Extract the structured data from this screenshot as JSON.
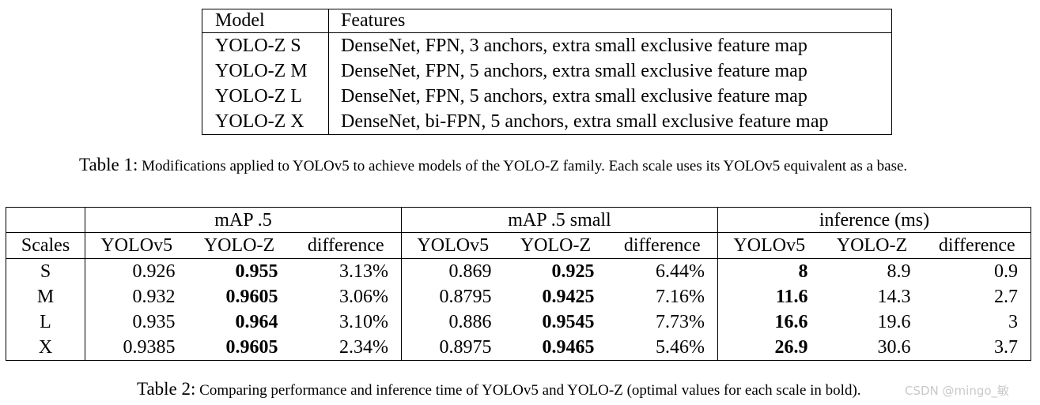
{
  "table1": {
    "headers": {
      "model": "Model",
      "features": "Features"
    },
    "rows": [
      {
        "model": "YOLO-Z S",
        "features": "DenseNet, FPN, 3 anchors, extra small exclusive feature map"
      },
      {
        "model": "YOLO-Z M",
        "features": "DenseNet, FPN, 5 anchors, extra small exclusive feature map"
      },
      {
        "model": "YOLO-Z L",
        "features": "DenseNet, FPN, 5 anchors, extra small exclusive feature map"
      },
      {
        "model": "YOLO-Z X",
        "features": "DenseNet, bi-FPN, 5 anchors, extra small exclusive feature map"
      }
    ],
    "caption_label": "Table 1:",
    "caption_text": "Modifications applied to YOLOv5 to achieve models of the YOLO-Z family. Each scale uses its YOLOv5 equivalent as a base."
  },
  "table2": {
    "groups": {
      "map5": "mAP .5",
      "map5_small": "mAP .5 small",
      "inference": "inference (ms)"
    },
    "sub": {
      "scales": "Scales",
      "yolov5": "YOLOv5",
      "yoloz": "YOLO-Z",
      "difference": "difference"
    },
    "rows": [
      {
        "scale": "S",
        "map_v5": "0.926",
        "map_z": "0.955",
        "map_diff": "3.13%",
        "small_v5": "0.869",
        "small_z": "0.925",
        "small_diff": "6.44%",
        "inf_v5": "8",
        "inf_z": "8.9",
        "inf_diff": "0.9"
      },
      {
        "scale": "M",
        "map_v5": "0.932",
        "map_z": "0.9605",
        "map_diff": "3.06%",
        "small_v5": "0.8795",
        "small_z": "0.9425",
        "small_diff": "7.16%",
        "inf_v5": "11.6",
        "inf_z": "14.3",
        "inf_diff": "2.7"
      },
      {
        "scale": "L",
        "map_v5": "0.935",
        "map_z": "0.964",
        "map_diff": "3.10%",
        "small_v5": "0.886",
        "small_z": "0.9545",
        "small_diff": "7.73%",
        "inf_v5": "16.6",
        "inf_z": "19.6",
        "inf_diff": "3"
      },
      {
        "scale": "X",
        "map_v5": "0.9385",
        "map_z": "0.9605",
        "map_diff": "2.34%",
        "small_v5": "0.8975",
        "small_z": "0.9465",
        "small_diff": "5.46%",
        "inf_v5": "26.9",
        "inf_z": "30.6",
        "inf_diff": "3.7"
      }
    ],
    "caption_label": "Table 2:",
    "caption_text": "Comparing performance and inference time of YOLOv5 and YOLO-Z (optimal values for each scale in bold)."
  },
  "watermark": "CSDN @mingo_敏"
}
